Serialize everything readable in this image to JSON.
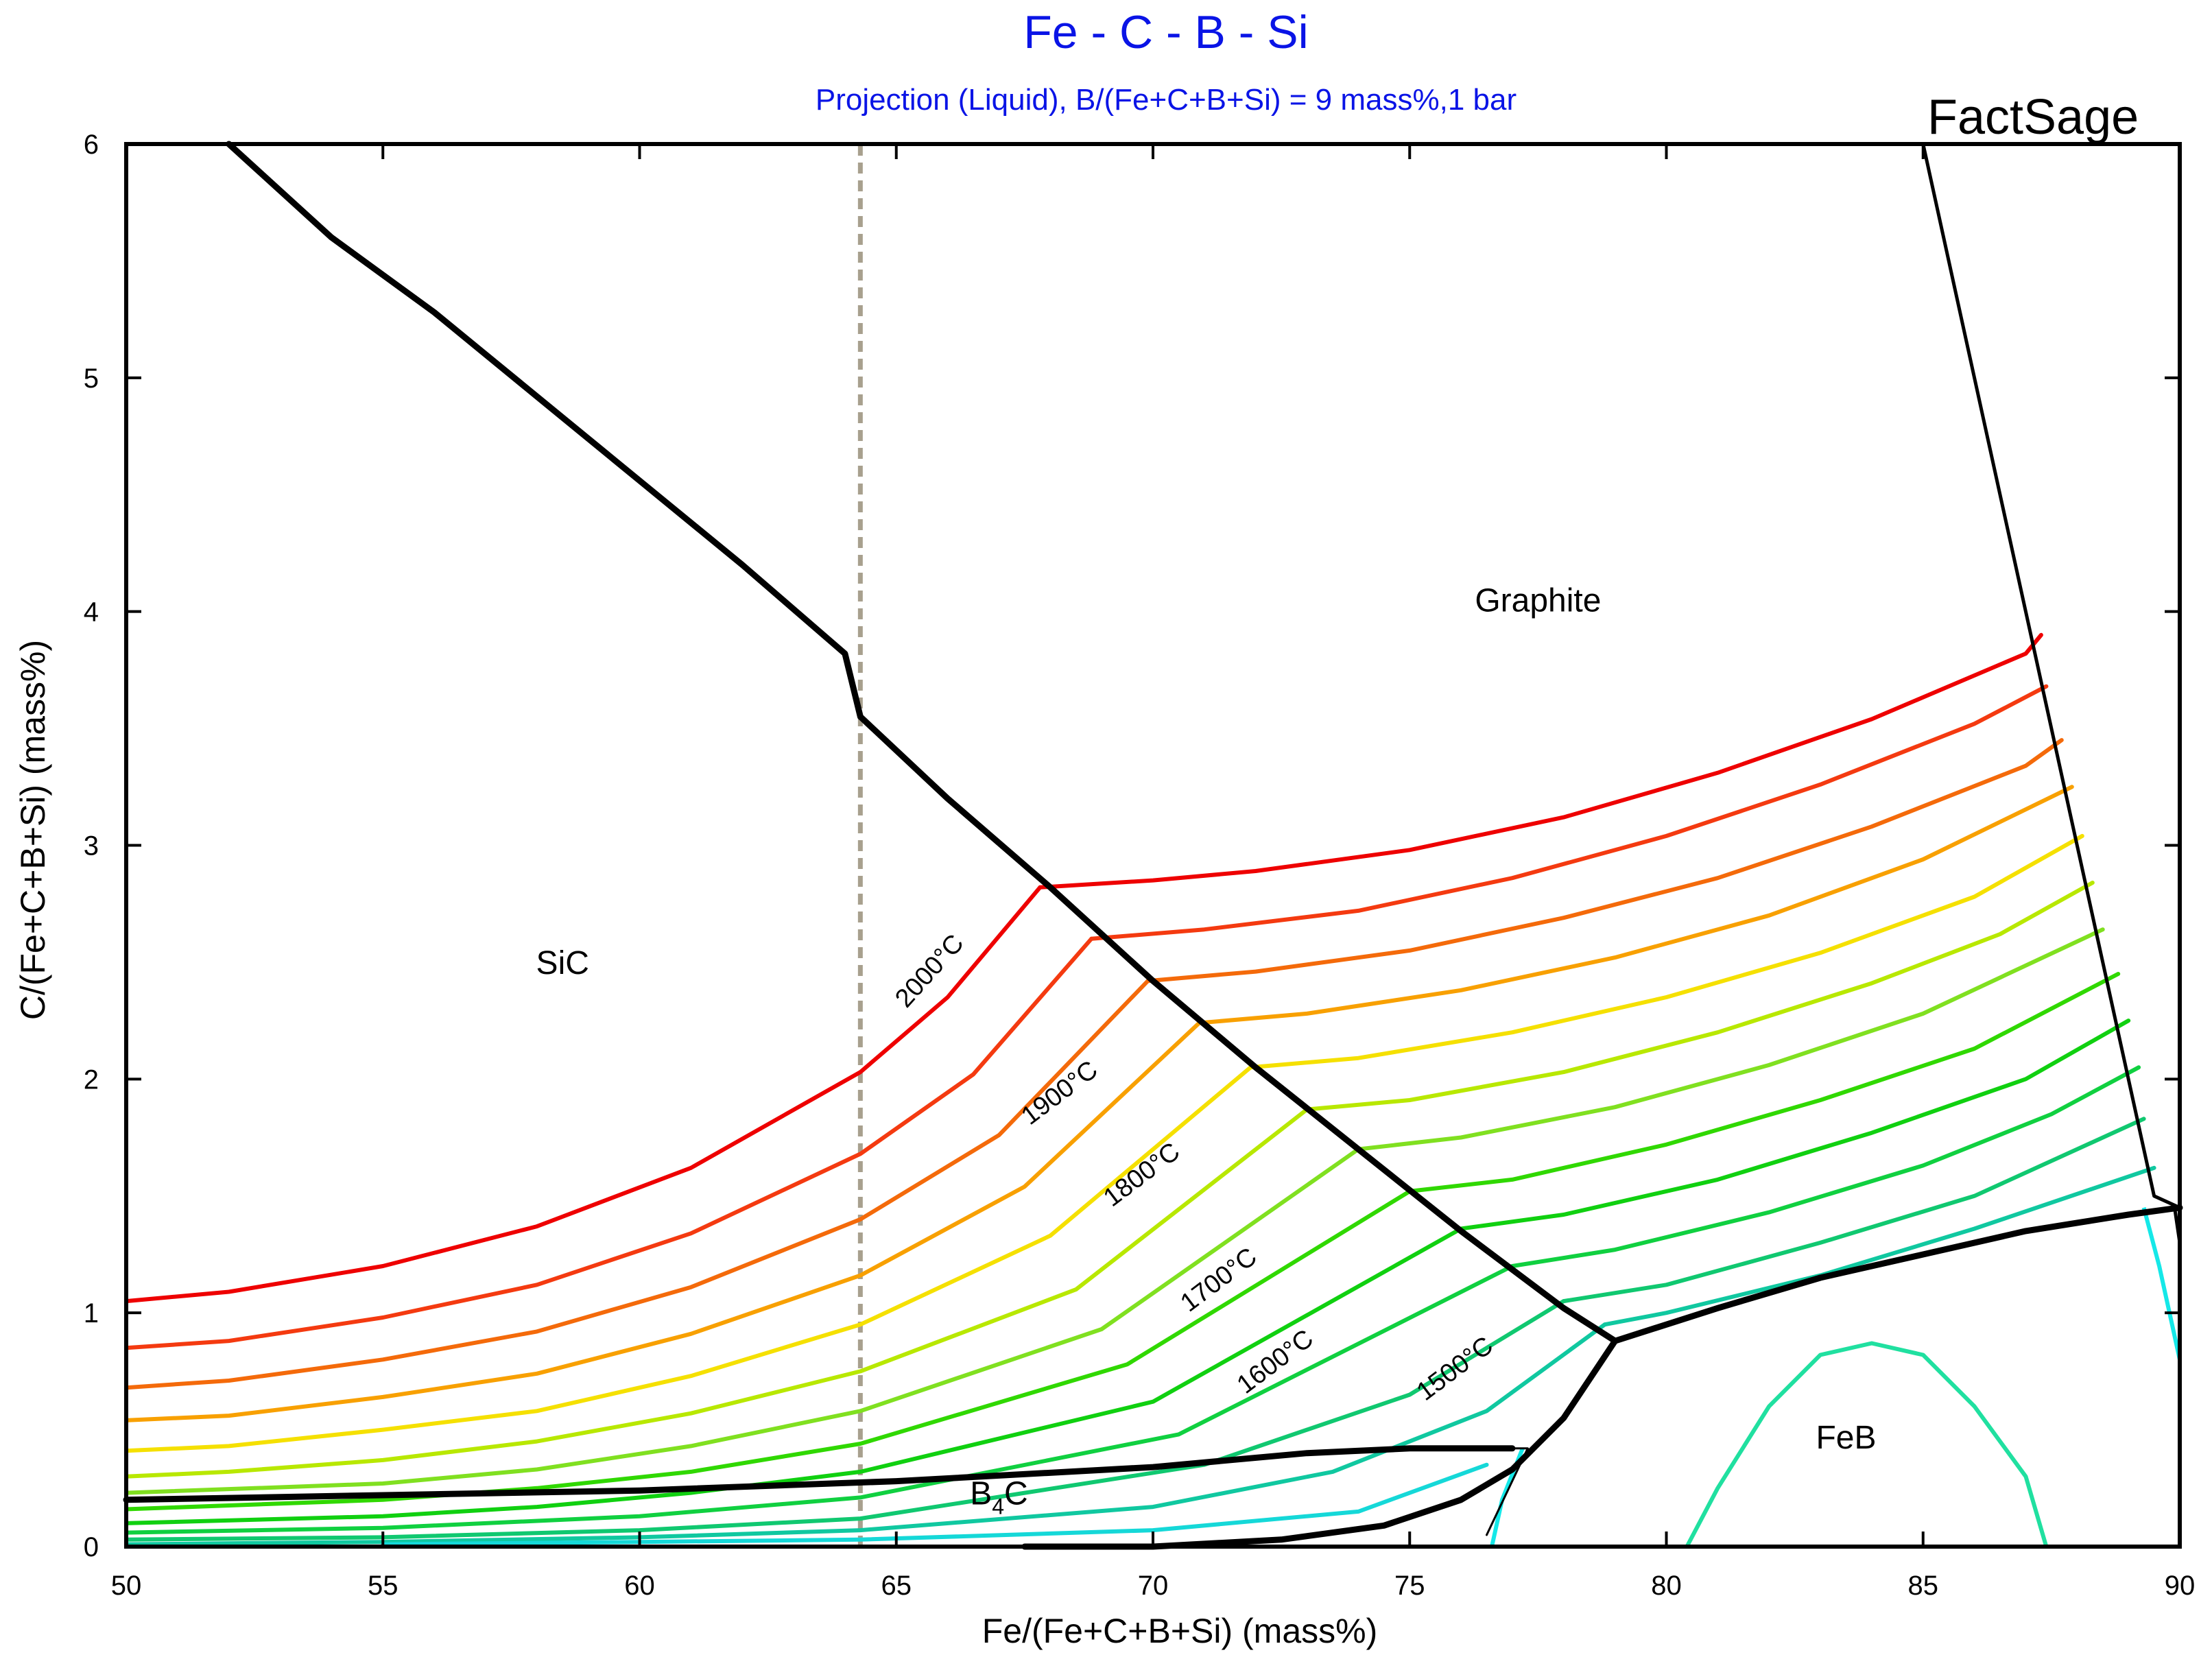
{
  "chart_data": {
    "type": "line",
    "title": "Fe - C - B - Si",
    "subtitle": "Projection (Liquid),  B/(Fe+C+B+Si) = 9 mass%,1 bar",
    "watermark": "FactSage",
    "xlabel": "Fe/(Fe+C+B+Si) (mass%)",
    "ylabel": "C/(Fe+C+B+Si) (mass%)",
    "xlim": [
      50,
      90
    ],
    "ylim": [
      0,
      6
    ],
    "x_ticks": [
      50,
      55,
      60,
      65,
      70,
      75,
      80,
      85,
      90
    ],
    "y_ticks": [
      0,
      1,
      2,
      3,
      4,
      5,
      6
    ],
    "grid": false,
    "region_labels": [
      {
        "name": "sic",
        "text": "SiC",
        "x": 58.5,
        "y": 2.45
      },
      {
        "name": "graphite",
        "text": "Graphite",
        "x": 77.5,
        "y": 4.0
      },
      {
        "name": "feb",
        "text": "FeB",
        "x": 83.5,
        "y": 0.42
      },
      {
        "name": "b4c",
        "text": "B4C",
        "x": 67.0,
        "y": 0.18
      }
    ],
    "isotherm_labels": [
      {
        "text": "2000°C",
        "x": 65.2,
        "y": 2.3,
        "angle": -48
      },
      {
        "text": "1900°C",
        "x": 67.6,
        "y": 1.8,
        "angle": -37
      },
      {
        "text": "1800°C",
        "x": 69.2,
        "y": 1.45,
        "angle": -37
      },
      {
        "text": "1700°C",
        "x": 70.7,
        "y": 1.0,
        "angle": -37
      },
      {
        "text": "1600°C",
        "x": 71.8,
        "y": 0.65,
        "angle": -37
      },
      {
        "text": "1500°C",
        "x": 75.3,
        "y": 0.62,
        "angle": -37
      }
    ],
    "colors": {
      "axis": "#000000",
      "boundary": "#000000",
      "title": "#0a14e6",
      "dashed_reference": "#a8a08e",
      "cyan": "#15e8e8",
      "teal": "#20e0a0"
    },
    "reference_line": {
      "x": 64.3,
      "y_range": [
        0,
        6
      ],
      "style": "dashed"
    },
    "boundaries": [
      {
        "name": "sic-graphite-boundary",
        "width": 9,
        "points": [
          [
            52,
            6
          ],
          [
            54,
            5.6
          ],
          [
            56,
            5.28
          ],
          [
            58,
            4.92
          ],
          [
            60,
            4.56
          ],
          [
            62,
            4.2
          ],
          [
            64,
            3.82
          ],
          [
            64.3,
            3.55
          ],
          [
            66,
            3.2
          ],
          [
            68,
            2.82
          ],
          [
            70,
            2.42
          ],
          [
            72,
            2.05
          ],
          [
            74,
            1.7
          ],
          [
            76,
            1.35
          ],
          [
            78,
            1.02
          ],
          [
            79,
            0.88
          ]
        ]
      },
      {
        "name": "graphite-feb-boundary",
        "width": 9,
        "points": [
          [
            79,
            0.88
          ],
          [
            81,
            1.02
          ],
          [
            83,
            1.15
          ],
          [
            85,
            1.25
          ],
          [
            87,
            1.35
          ],
          [
            89,
            1.42
          ],
          [
            90,
            1.45
          ]
        ]
      },
      {
        "name": "b4c-upper-boundary",
        "width": 9,
        "points": [
          [
            50,
            0.2
          ],
          [
            55,
            0.22
          ],
          [
            60,
            0.24
          ],
          [
            65,
            0.28
          ],
          [
            70,
            0.34
          ],
          [
            73,
            0.4
          ],
          [
            75,
            0.42
          ],
          [
            77,
            0.42
          ]
        ]
      },
      {
        "name": "b4c-lower-boundary",
        "width": 9,
        "points": [
          [
            67.5,
            0
          ],
          [
            70,
            0
          ],
          [
            72.5,
            0.03
          ],
          [
            74.5,
            0.09
          ],
          [
            76,
            0.2
          ],
          [
            77,
            0.33
          ],
          [
            78,
            0.55
          ],
          [
            79,
            0.88
          ]
        ]
      },
      {
        "name": "b4c-boundary-tip",
        "width": 3,
        "points": [
          [
            76.5,
            0.05
          ],
          [
            77.3,
            0.42
          ],
          [
            76.7,
            0.42
          ]
        ]
      },
      {
        "name": "fe-side-boundary",
        "width": 5,
        "points": [
          [
            85,
            6
          ],
          [
            86.5,
            4.5
          ],
          [
            88,
            3.0
          ],
          [
            89.5,
            1.5
          ],
          [
            90,
            1.45
          ]
        ]
      },
      {
        "name": "feb-edge-boundary",
        "width": 5,
        "points": [
          [
            89.9,
            1.45
          ],
          [
            90,
            1.3
          ]
        ]
      }
    ],
    "cyan_boundaries": [
      {
        "name": "feb-left-boundary",
        "color": "#15e8e8",
        "points": [
          [
            77.2,
            0.42
          ],
          [
            76.8,
            0.2
          ],
          [
            76.6,
            0
          ]
        ]
      },
      {
        "name": "feb-dome",
        "color": "#20e0a0",
        "points": [
          [
            80.4,
            0
          ],
          [
            81,
            0.25
          ],
          [
            82,
            0.6
          ],
          [
            83,
            0.82
          ],
          [
            84,
            0.87
          ],
          [
            85,
            0.82
          ],
          [
            86,
            0.6
          ],
          [
            87,
            0.3
          ],
          [
            87.4,
            0
          ]
        ]
      },
      {
        "name": "fe-corner-boundary",
        "color": "#15e8e8",
        "points": [
          [
            89.3,
            1.45
          ],
          [
            89.6,
            1.2
          ],
          [
            90,
            0.8
          ]
        ]
      }
    ],
    "isotherms": [
      {
        "name": "isotherm-2000",
        "color": "#ee0000",
        "left": [
          [
            50,
            1.05
          ],
          [
            52,
            1.09
          ],
          [
            55,
            1.2
          ],
          [
            58,
            1.37
          ],
          [
            61,
            1.62
          ],
          [
            64.3,
            2.03
          ],
          [
            66,
            2.35
          ],
          [
            67.8,
            2.82
          ]
        ],
        "right": [
          [
            67.8,
            2.82
          ],
          [
            70,
            2.85
          ],
          [
            72,
            2.89
          ],
          [
            75,
            2.98
          ],
          [
            78,
            3.12
          ],
          [
            81,
            3.31
          ],
          [
            84,
            3.54
          ],
          [
            87,
            3.82
          ],
          [
            87.3,
            3.9
          ]
        ]
      },
      {
        "name": "isotherm-1950",
        "color": "#f43a10",
        "left": [
          [
            50,
            0.85
          ],
          [
            52,
            0.88
          ],
          [
            55,
            0.98
          ],
          [
            58,
            1.12
          ],
          [
            61,
            1.34
          ],
          [
            64.3,
            1.68
          ],
          [
            66.5,
            2.02
          ],
          [
            68.8,
            2.6
          ]
        ],
        "right": [
          [
            68.8,
            2.6
          ],
          [
            71,
            2.64
          ],
          [
            74,
            2.72
          ],
          [
            77,
            2.86
          ],
          [
            80,
            3.04
          ],
          [
            83,
            3.26
          ],
          [
            86,
            3.52
          ],
          [
            87.4,
            3.68
          ]
        ]
      },
      {
        "name": "isotherm-1900",
        "color": "#f46a0a",
        "left": [
          [
            50,
            0.68
          ],
          [
            52,
            0.71
          ],
          [
            55,
            0.8
          ],
          [
            58,
            0.92
          ],
          [
            61,
            1.11
          ],
          [
            64.3,
            1.4
          ],
          [
            67,
            1.76
          ],
          [
            69.9,
            2.42
          ]
        ],
        "right": [
          [
            69.9,
            2.42
          ],
          [
            72,
            2.46
          ],
          [
            75,
            2.55
          ],
          [
            78,
            2.69
          ],
          [
            81,
            2.86
          ],
          [
            84,
            3.08
          ],
          [
            87,
            3.34
          ],
          [
            87.7,
            3.45
          ]
        ]
      },
      {
        "name": "isotherm-1850",
        "color": "#f8a000",
        "left": [
          [
            50,
            0.54
          ],
          [
            52,
            0.56
          ],
          [
            55,
            0.64
          ],
          [
            58,
            0.74
          ],
          [
            61,
            0.91
          ],
          [
            64.3,
            1.16
          ],
          [
            67.5,
            1.54
          ],
          [
            70.9,
            2.24
          ]
        ],
        "right": [
          [
            70.9,
            2.24
          ],
          [
            73,
            2.28
          ],
          [
            76,
            2.38
          ],
          [
            79,
            2.52
          ],
          [
            82,
            2.7
          ],
          [
            85,
            2.94
          ],
          [
            87.9,
            3.25
          ]
        ]
      },
      {
        "name": "isotherm-1800",
        "color": "#f5e000",
        "left": [
          [
            50,
            0.41
          ],
          [
            52,
            0.43
          ],
          [
            55,
            0.5
          ],
          [
            58,
            0.58
          ],
          [
            61,
            0.73
          ],
          [
            64.3,
            0.95
          ],
          [
            68,
            1.33
          ],
          [
            71.9,
            2.05
          ]
        ],
        "right": [
          [
            71.9,
            2.05
          ],
          [
            74,
            2.09
          ],
          [
            77,
            2.2
          ],
          [
            80,
            2.35
          ],
          [
            83,
            2.54
          ],
          [
            86,
            2.78
          ],
          [
            88.1,
            3.04
          ]
        ]
      },
      {
        "name": "isotherm-1750",
        "color": "#b8e800",
        "left": [
          [
            50,
            0.3
          ],
          [
            52,
            0.32
          ],
          [
            55,
            0.37
          ],
          [
            58,
            0.45
          ],
          [
            61,
            0.57
          ],
          [
            64.3,
            0.75
          ],
          [
            68.5,
            1.1
          ],
          [
            73,
            1.87
          ]
        ],
        "right": [
          [
            73,
            1.87
          ],
          [
            75,
            1.91
          ],
          [
            78,
            2.03
          ],
          [
            81,
            2.2
          ],
          [
            84,
            2.41
          ],
          [
            86.5,
            2.62
          ],
          [
            88.3,
            2.84
          ]
        ]
      },
      {
        "name": "isotherm-1700",
        "color": "#80e020",
        "left": [
          [
            50,
            0.23
          ],
          [
            55,
            0.27
          ],
          [
            58,
            0.33
          ],
          [
            61,
            0.43
          ],
          [
            64.3,
            0.58
          ],
          [
            69,
            0.93
          ],
          [
            74,
            1.7
          ]
        ],
        "right": [
          [
            74,
            1.7
          ],
          [
            76,
            1.75
          ],
          [
            79,
            1.88
          ],
          [
            82,
            2.06
          ],
          [
            85,
            2.28
          ],
          [
            88.5,
            2.64
          ]
        ]
      },
      {
        "name": "isotherm-1650",
        "color": "#30d800",
        "left": [
          [
            50,
            0.16
          ],
          [
            55,
            0.2
          ],
          [
            58,
            0.25
          ],
          [
            61,
            0.32
          ],
          [
            64.3,
            0.44
          ],
          [
            69.5,
            0.78
          ],
          [
            75,
            1.52
          ]
        ],
        "right": [
          [
            75,
            1.52
          ],
          [
            77,
            1.57
          ],
          [
            80,
            1.72
          ],
          [
            83,
            1.91
          ],
          [
            86,
            2.13
          ],
          [
            88.8,
            2.45
          ]
        ]
      },
      {
        "name": "isotherm-1600",
        "color": "#10d010",
        "left": [
          [
            50,
            0.1
          ],
          [
            55,
            0.13
          ],
          [
            58,
            0.17
          ],
          [
            61,
            0.23
          ],
          [
            64.3,
            0.32
          ],
          [
            70,
            0.62
          ],
          [
            76,
            1.36
          ]
        ],
        "right": [
          [
            76,
            1.36
          ],
          [
            78,
            1.42
          ],
          [
            81,
            1.57
          ],
          [
            84,
            1.77
          ],
          [
            87,
            2.0
          ],
          [
            89,
            2.25
          ]
        ]
      },
      {
        "name": "isotherm-1550",
        "color": "#10d040",
        "left": [
          [
            50,
            0.06
          ],
          [
            55,
            0.08
          ],
          [
            60,
            0.13
          ],
          [
            64.3,
            0.21
          ],
          [
            70.5,
            0.48
          ],
          [
            77,
            1.2
          ]
        ],
        "right": [
          [
            77,
            1.2
          ],
          [
            79,
            1.27
          ],
          [
            82,
            1.43
          ],
          [
            85,
            1.63
          ],
          [
            87.5,
            1.85
          ],
          [
            89.2,
            2.05
          ]
        ]
      },
      {
        "name": "isotherm-1500",
        "color": "#10c870",
        "left": [
          [
            50,
            0.03
          ],
          [
            55,
            0.04
          ],
          [
            60,
            0.07
          ],
          [
            64.3,
            0.12
          ],
          [
            71,
            0.35
          ],
          [
            75,
            0.65
          ],
          [
            78,
            1.05
          ]
        ],
        "right": [
          [
            78,
            1.05
          ],
          [
            80,
            1.12
          ],
          [
            83,
            1.3
          ],
          [
            86,
            1.5
          ],
          [
            89.3,
            1.83
          ]
        ]
      },
      {
        "name": "isotherm-1450",
        "color": "#10c8a0",
        "left": [
          [
            50,
            0.01
          ],
          [
            55,
            0.02
          ],
          [
            60,
            0.04
          ],
          [
            64.3,
            0.07
          ],
          [
            70,
            0.17
          ],
          [
            73.5,
            0.32
          ],
          [
            76.5,
            0.58
          ],
          [
            78.8,
            0.95
          ]
        ],
        "right": [
          [
            78.8,
            0.95
          ],
          [
            80,
            1.0
          ],
          [
            83,
            1.16
          ],
          [
            86,
            1.36
          ],
          [
            89.5,
            1.62
          ]
        ]
      },
      {
        "name": "isotherm-1400",
        "color": "#15d8d8",
        "left": [
          [
            55,
            0.01
          ],
          [
            60,
            0.02
          ],
          [
            64.3,
            0.03
          ],
          [
            70,
            0.07
          ],
          [
            74,
            0.15
          ],
          [
            76.5,
            0.35
          ]
        ],
        "right": []
      }
    ]
  }
}
